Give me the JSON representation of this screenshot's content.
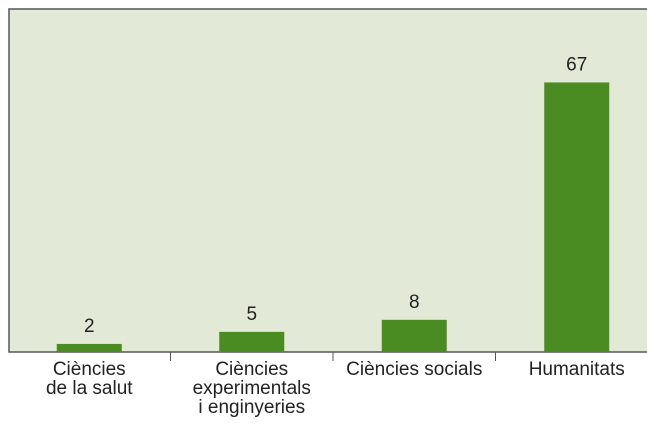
{
  "chart_data": {
    "type": "bar",
    "categories": [
      "Ciències\nde la salut",
      "Ciències\nexperimentals\ni enginyeries",
      "Ciències socials",
      "Humanitats"
    ],
    "values": [
      2,
      5,
      8,
      67
    ],
    "color": "#4a8c22",
    "ylim": [
      0,
      85
    ]
  }
}
